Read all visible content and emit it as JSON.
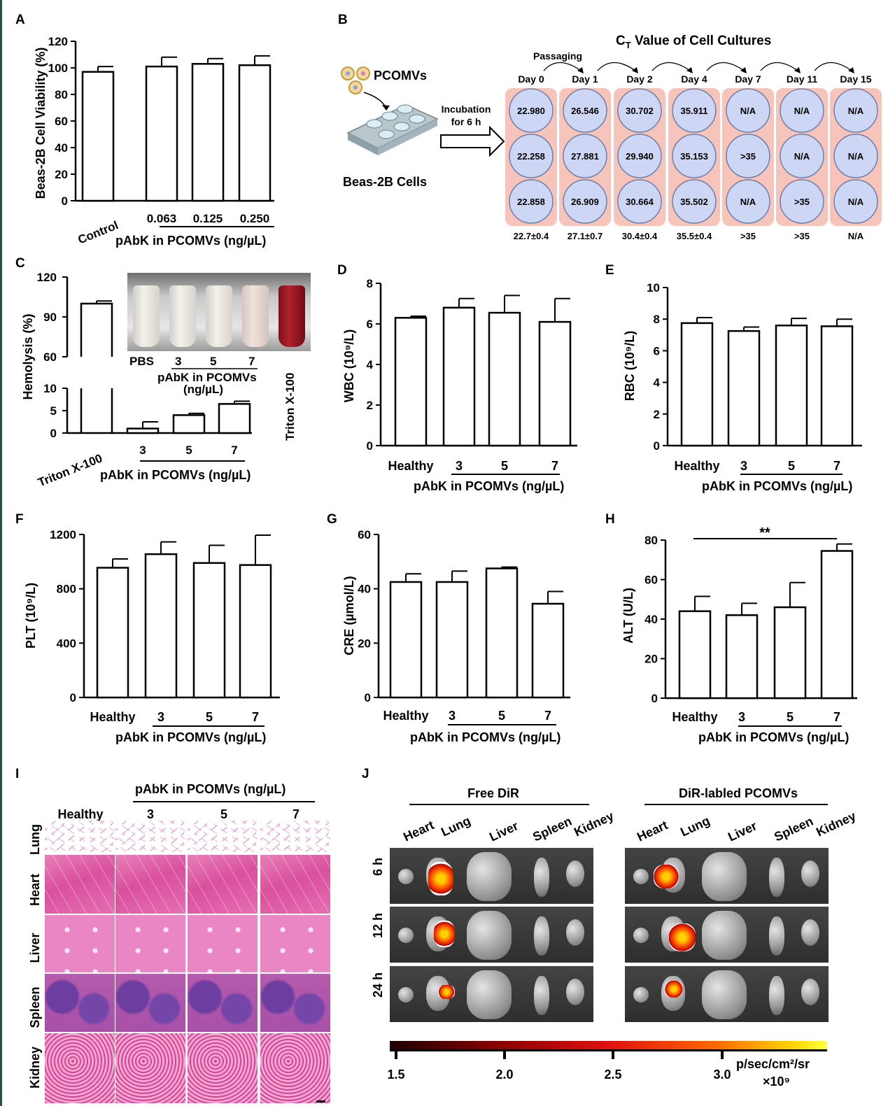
{
  "panels": {
    "A": {
      "letter": "A",
      "chart_data": {
        "type": "bar",
        "categories": [
          "Control",
          "0.063",
          "0.125",
          "0.250"
        ],
        "values": [
          97,
          101,
          103,
          102
        ],
        "errors": [
          4,
          7,
          4,
          7
        ],
        "ylabel": "Beas-2B Cell Viability (%)",
        "xlabel": "pAbK in PCOMVs (ng/µL)",
        "ylim": [
          0,
          120
        ],
        "yticks": [
          "0",
          "20",
          "40",
          "60",
          "80",
          "100",
          "120"
        ]
      }
    },
    "B": {
      "letter": "B",
      "title": "C",
      "title_sub": "T",
      "title_rest": " Value of Cell Cultures",
      "passaging": "Passaging",
      "pcomvs": "PCOMVs",
      "cells": "Beas-2B Cells",
      "incubation": [
        "Incubation",
        "for 6 h"
      ],
      "chart_data": {
        "type": "table",
        "columns": [
          "Day 0",
          "Day 1",
          "Day 2",
          "Day 4",
          "Day 7",
          "Day 11",
          "Day 15"
        ],
        "rows": [
          [
            "22.980",
            "26.546",
            "30.702",
            "35.911",
            "N/A",
            "N/A",
            "N/A"
          ],
          [
            "22.258",
            "27.881",
            "29.940",
            "35.153",
            ">35",
            "N/A",
            "N/A"
          ],
          [
            "22.858",
            "26.909",
            "30.664",
            "35.502",
            "N/A",
            ">35",
            "N/A"
          ]
        ],
        "summary": [
          "22.7±0.4",
          "27.1±0.7",
          "30.4±0.4",
          "35.5±0.4",
          ">35",
          ">35",
          "N/A"
        ]
      }
    },
    "C": {
      "letter": "C",
      "chart_data": {
        "type": "bar",
        "categories": [
          "Triton X-100",
          "3",
          "5",
          "7"
        ],
        "values": [
          100,
          1.0,
          4.0,
          6.5
        ],
        "errors": [
          2,
          1.5,
          0.4,
          0.6
        ],
        "ylabel": "Hemolysis (%)",
        "xlabel": "pAbK in PCOMVs (ng/µL)",
        "ylim_lower": [
          0,
          10
        ],
        "ylim_upper": [
          60,
          120
        ],
        "yticks_lower": [
          "0",
          "5",
          "10"
        ],
        "yticks_upper": [
          "60",
          "90",
          "120"
        ]
      },
      "inset": {
        "pbs": "PBS",
        "doses": [
          "3",
          "5",
          "7"
        ],
        "label1": "pAbK in PCOMVs",
        "label2": "(ng/µL)",
        "triton": "Triton X-100"
      }
    },
    "D": {
      "letter": "D",
      "chart_data": {
        "type": "bar",
        "categories": [
          "Healthy",
          "3",
          "5",
          "7"
        ],
        "values": [
          6.3,
          6.8,
          6.55,
          6.1
        ],
        "errors": [
          0.08,
          0.45,
          0.85,
          1.15
        ],
        "ylabel": "WBC (10⁹/L)",
        "xlabel": "pAbK in PCOMVs (ng/µL)",
        "ylim": [
          0,
          8
        ],
        "yticks": [
          "0",
          "2",
          "4",
          "6",
          "8"
        ]
      }
    },
    "E": {
      "letter": "E",
      "chart_data": {
        "type": "bar",
        "categories": [
          "Healthy",
          "3",
          "5",
          "7"
        ],
        "values": [
          7.75,
          7.25,
          7.6,
          7.55
        ],
        "errors": [
          0.35,
          0.25,
          0.45,
          0.45
        ],
        "ylabel": "RBC (10⁹/L)",
        "xlabel": "pAbK in PCOMVs (ng/µL)",
        "ylim": [
          0,
          10
        ],
        "yticks": [
          "0",
          "2",
          "4",
          "6",
          "8",
          "10"
        ]
      }
    },
    "F": {
      "letter": "F",
      "chart_data": {
        "type": "bar",
        "categories": [
          "Healthy",
          "3",
          "5",
          "7"
        ],
        "values": [
          955,
          1055,
          990,
          975
        ],
        "errors": [
          65,
          90,
          130,
          220
        ],
        "ylabel": "PLT (10⁹/L)",
        "xlabel": "pAbK in PCOMVs (ng/µL)",
        "ylim": [
          0,
          1200
        ],
        "yticks": [
          "0",
          "400",
          "800",
          "1200"
        ]
      }
    },
    "G": {
      "letter": "G",
      "chart_data": {
        "type": "bar",
        "categories": [
          "Healthy",
          "3",
          "5",
          "7"
        ],
        "values": [
          42.5,
          42.5,
          47.5,
          34.5
        ],
        "errors": [
          3,
          4,
          0.5,
          4.5
        ],
        "ylabel": "CRE (µmol/L)",
        "xlabel": "pAbK in PCOMVs (ng/µL)",
        "ylim": [
          0,
          60
        ],
        "yticks": [
          "0",
          "20",
          "40",
          "60"
        ]
      }
    },
    "H": {
      "letter": "H",
      "chart_data": {
        "type": "bar",
        "categories": [
          "Healthy",
          "3",
          "5",
          "7"
        ],
        "values": [
          44,
          42,
          46,
          74.5
        ],
        "errors": [
          7.5,
          6,
          12.5,
          3.5
        ],
        "ylabel": "ALT (U/L)",
        "xlabel": "pAbK in PCOMVs (ng/µL)",
        "ylim": [
          0,
          80
        ],
        "yticks": [
          "0",
          "20",
          "40",
          "60",
          "80"
        ],
        "significance": "**"
      }
    },
    "I": {
      "letter": "I",
      "header": "pAbK in PCOMVs (ng/µL)",
      "columns": [
        "Healthy",
        "3",
        "5",
        "7"
      ],
      "rows": [
        "Lung",
        "Heart",
        "Liver",
        "Spleen",
        "Kidney"
      ]
    },
    "J": {
      "letter": "J",
      "groups": [
        "Free DiR",
        "DiR-labled PCOMVs"
      ],
      "organs": [
        "Heart",
        "Lung",
        "Liver",
        "Spleen",
        "Kidney"
      ],
      "times": [
        "6 h",
        "12 h",
        "24 h"
      ],
      "colorbar": {
        "ticks": [
          "1.5",
          "2.0",
          "2.5",
          "3.0"
        ],
        "unit": "p/sec/cm²/sr",
        "scale": "×10⁹",
        "colors": [
          "#200000",
          "#8b0000",
          "#e01010",
          "#ff6a00",
          "#ffd400",
          "#ffff40"
        ]
      }
    }
  }
}
